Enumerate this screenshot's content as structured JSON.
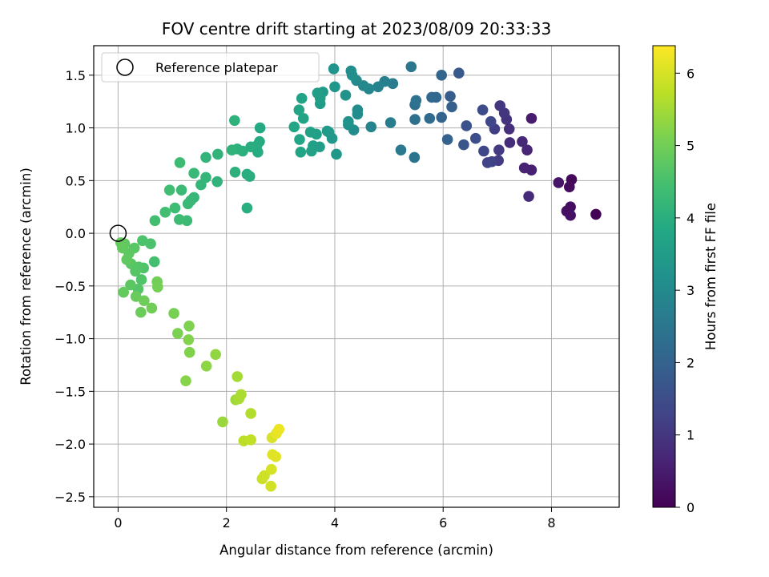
{
  "chart_data": {
    "type": "scatter",
    "title": "FOV centre drift starting at 2023/08/09 20:33:33",
    "xlabel": "Angular distance from reference (arcmin)",
    "ylabel": "Rotation from reference (arcmin)",
    "colorbar_label": "Hours from first FF file",
    "xlim": [
      -0.45,
      9.25
    ],
    "ylim": [
      -2.6,
      1.78
    ],
    "clim": [
      0,
      6.38
    ],
    "colormap": "viridis",
    "grid": true,
    "legend_position": "top-left",
    "x_ticks": [
      "0",
      "2",
      "4",
      "6",
      "8"
    ],
    "x_tick_values": [
      0,
      2,
      4,
      6,
      8
    ],
    "y_ticks": [
      "1.5",
      "1.0",
      "0.5",
      "0.0",
      "−0.5",
      "−1.0",
      "−1.5",
      "−2.0",
      "−2.5"
    ],
    "y_tick_values": [
      1.5,
      1.0,
      0.5,
      0.0,
      -0.5,
      -1.0,
      -1.5,
      -2.0,
      -2.5
    ],
    "colorbar_ticks": [
      "6",
      "5",
      "4",
      "3",
      "2",
      "1",
      "0"
    ],
    "colorbar_tick_values": [
      6,
      5,
      4,
      3,
      2,
      1,
      0
    ],
    "reference": {
      "label": "Reference platepar",
      "x": 0.0,
      "y": 0.0
    },
    "points": [
      {
        "x": 8.82,
        "y": 0.18,
        "t": 0.02
      },
      {
        "x": 8.37,
        "y": 0.51,
        "t": 0.12
      },
      {
        "x": 8.33,
        "y": 0.44,
        "t": 0.18
      },
      {
        "x": 8.35,
        "y": 0.25,
        "t": 0.22
      },
      {
        "x": 8.28,
        "y": 0.21,
        "t": 0.26
      },
      {
        "x": 8.35,
        "y": 0.17,
        "t": 0.3
      },
      {
        "x": 8.13,
        "y": 0.48,
        "t": 0.36
      },
      {
        "x": 7.63,
        "y": 1.09,
        "t": 0.5
      },
      {
        "x": 7.63,
        "y": 0.6,
        "t": 0.56
      },
      {
        "x": 7.5,
        "y": 0.62,
        "t": 0.62
      },
      {
        "x": 7.55,
        "y": 0.79,
        "t": 0.66
      },
      {
        "x": 7.46,
        "y": 0.87,
        "t": 0.72
      },
      {
        "x": 7.58,
        "y": 0.35,
        "t": 0.76
      },
      {
        "x": 7.23,
        "y": 0.86,
        "t": 0.82
      },
      {
        "x": 7.22,
        "y": 0.99,
        "t": 0.86
      },
      {
        "x": 7.17,
        "y": 1.08,
        "t": 0.92
      },
      {
        "x": 7.13,
        "y": 1.14,
        "t": 0.98
      },
      {
        "x": 7.05,
        "y": 1.21,
        "t": 1.02
      },
      {
        "x": 7.03,
        "y": 0.79,
        "t": 1.08
      },
      {
        "x": 7.02,
        "y": 0.69,
        "t": 1.12
      },
      {
        "x": 6.95,
        "y": 0.99,
        "t": 1.18
      },
      {
        "x": 6.9,
        "y": 0.68,
        "t": 1.24
      },
      {
        "x": 6.82,
        "y": 0.67,
        "t": 1.28
      },
      {
        "x": 6.75,
        "y": 0.78,
        "t": 1.34
      },
      {
        "x": 6.88,
        "y": 1.06,
        "t": 1.38
      },
      {
        "x": 6.73,
        "y": 1.17,
        "t": 1.44
      },
      {
        "x": 6.6,
        "y": 0.9,
        "t": 1.52
      },
      {
        "x": 6.43,
        "y": 1.02,
        "t": 1.62
      },
      {
        "x": 6.38,
        "y": 0.84,
        "t": 1.7
      },
      {
        "x": 6.29,
        "y": 1.52,
        "t": 1.78
      },
      {
        "x": 6.13,
        "y": 1.3,
        "t": 1.86
      },
      {
        "x": 6.16,
        "y": 1.2,
        "t": 1.92
      },
      {
        "x": 6.08,
        "y": 0.89,
        "t": 1.98
      },
      {
        "x": 5.97,
        "y": 1.1,
        "t": 2.04
      },
      {
        "x": 5.97,
        "y": 1.5,
        "t": 2.08
      },
      {
        "x": 5.87,
        "y": 1.29,
        "t": 2.12
      },
      {
        "x": 5.79,
        "y": 1.29,
        "t": 2.18
      },
      {
        "x": 5.75,
        "y": 1.09,
        "t": 2.22
      },
      {
        "x": 5.48,
        "y": 1.22,
        "t": 2.3
      },
      {
        "x": 5.48,
        "y": 1.08,
        "t": 2.34
      },
      {
        "x": 5.5,
        "y": 1.26,
        "t": 2.4
      },
      {
        "x": 5.47,
        "y": 0.72,
        "t": 2.46
      },
      {
        "x": 5.41,
        "y": 1.58,
        "t": 2.52
      },
      {
        "x": 5.22,
        "y": 0.79,
        "t": 2.58
      },
      {
        "x": 5.07,
        "y": 1.42,
        "t": 2.64
      },
      {
        "x": 5.03,
        "y": 1.05,
        "t": 2.7
      },
      {
        "x": 4.92,
        "y": 1.44,
        "t": 2.76
      },
      {
        "x": 4.8,
        "y": 1.39,
        "t": 2.82
      },
      {
        "x": 4.67,
        "y": 1.01,
        "t": 2.86
      },
      {
        "x": 4.63,
        "y": 1.37,
        "t": 2.9
      },
      {
        "x": 4.53,
        "y": 1.4,
        "t": 2.96
      },
      {
        "x": 4.4,
        "y": 1.45,
        "t": 3.0
      },
      {
        "x": 4.42,
        "y": 1.17,
        "t": 3.04
      },
      {
        "x": 4.42,
        "y": 1.13,
        "t": 3.06
      },
      {
        "x": 4.35,
        "y": 0.98,
        "t": 3.1
      },
      {
        "x": 4.3,
        "y": 1.54,
        "t": 3.12
      },
      {
        "x": 4.32,
        "y": 1.5,
        "t": 3.16
      },
      {
        "x": 4.25,
        "y": 1.03,
        "t": 3.18
      },
      {
        "x": 4.25,
        "y": 1.06,
        "t": 3.22
      },
      {
        "x": 4.2,
        "y": 1.31,
        "t": 3.24
      },
      {
        "x": 3.98,
        "y": 1.56,
        "t": 3.3
      },
      {
        "x": 4.0,
        "y": 1.39,
        "t": 3.32
      },
      {
        "x": 4.03,
        "y": 0.75,
        "t": 3.36
      },
      {
        "x": 3.95,
        "y": 0.9,
        "t": 3.38
      },
      {
        "x": 3.89,
        "y": 0.96,
        "t": 3.42
      },
      {
        "x": 3.86,
        "y": 0.97,
        "t": 3.44
      },
      {
        "x": 3.78,
        "y": 1.34,
        "t": 3.46
      },
      {
        "x": 3.73,
        "y": 1.23,
        "t": 3.5
      },
      {
        "x": 3.73,
        "y": 1.28,
        "t": 3.52
      },
      {
        "x": 3.72,
        "y": 0.82,
        "t": 3.54
      },
      {
        "x": 3.68,
        "y": 1.33,
        "t": 3.56
      },
      {
        "x": 3.66,
        "y": 0.94,
        "t": 3.58
      },
      {
        "x": 3.6,
        "y": 0.83,
        "t": 3.6
      },
      {
        "x": 3.57,
        "y": 0.78,
        "t": 3.62
      },
      {
        "x": 3.55,
        "y": 0.96,
        "t": 3.64
      },
      {
        "x": 3.42,
        "y": 1.09,
        "t": 3.68
      },
      {
        "x": 3.39,
        "y": 1.28,
        "t": 3.7
      },
      {
        "x": 3.34,
        "y": 1.17,
        "t": 3.72
      },
      {
        "x": 3.37,
        "y": 0.77,
        "t": 3.74
      },
      {
        "x": 3.35,
        "y": 0.89,
        "t": 3.76
      },
      {
        "x": 3.25,
        "y": 1.01,
        "t": 3.78
      },
      {
        "x": 2.62,
        "y": 1.0,
        "t": 3.86
      },
      {
        "x": 2.61,
        "y": 0.87,
        "t": 3.88
      },
      {
        "x": 2.58,
        "y": 0.77,
        "t": 3.9
      },
      {
        "x": 2.56,
        "y": 0.83,
        "t": 3.92
      },
      {
        "x": 2.45,
        "y": 0.82,
        "t": 3.94
      },
      {
        "x": 2.43,
        "y": 0.54,
        "t": 3.96
      },
      {
        "x": 2.38,
        "y": 0.56,
        "t": 3.98
      },
      {
        "x": 2.38,
        "y": 0.24,
        "t": 4.0
      },
      {
        "x": 2.3,
        "y": 0.78,
        "t": 4.02
      },
      {
        "x": 2.2,
        "y": 0.8,
        "t": 4.04
      },
      {
        "x": 2.16,
        "y": 0.58,
        "t": 4.06
      },
      {
        "x": 2.15,
        "y": 1.07,
        "t": 4.08
      },
      {
        "x": 2.1,
        "y": 0.79,
        "t": 4.1
      },
      {
        "x": 1.83,
        "y": 0.49,
        "t": 4.12
      },
      {
        "x": 1.84,
        "y": 0.75,
        "t": 4.14
      },
      {
        "x": 1.62,
        "y": 0.72,
        "t": 4.16
      },
      {
        "x": 1.62,
        "y": 0.53,
        "t": 4.18
      },
      {
        "x": 1.53,
        "y": 0.46,
        "t": 4.2
      },
      {
        "x": 1.4,
        "y": 0.34,
        "t": 4.22
      },
      {
        "x": 1.34,
        "y": 0.31,
        "t": 4.24
      },
      {
        "x": 1.4,
        "y": 0.57,
        "t": 4.26
      },
      {
        "x": 1.29,
        "y": 0.28,
        "t": 4.28
      },
      {
        "x": 1.27,
        "y": 0.12,
        "t": 4.3
      },
      {
        "x": 1.17,
        "y": 0.41,
        "t": 4.32
      },
      {
        "x": 1.14,
        "y": 0.67,
        "t": 4.34
      },
      {
        "x": 1.13,
        "y": 0.13,
        "t": 4.36
      },
      {
        "x": 1.05,
        "y": 0.24,
        "t": 4.38
      },
      {
        "x": 0.95,
        "y": 0.41,
        "t": 4.4
      },
      {
        "x": 0.87,
        "y": 0.2,
        "t": 4.42
      },
      {
        "x": 0.68,
        "y": 0.12,
        "t": 4.44
      },
      {
        "x": 0.67,
        "y": -0.27,
        "t": 4.48
      },
      {
        "x": 0.6,
        "y": -0.1,
        "t": 4.52
      },
      {
        "x": 0.45,
        "y": -0.07,
        "t": 4.56
      },
      {
        "x": 0.47,
        "y": -0.33,
        "t": 4.6
      },
      {
        "x": 0.43,
        "y": -0.44,
        "t": 4.62
      },
      {
        "x": 0.38,
        "y": -0.32,
        "t": 4.64
      },
      {
        "x": 0.37,
        "y": -0.53,
        "t": 4.66
      },
      {
        "x": 0.32,
        "y": -0.36,
        "t": 4.68
      },
      {
        "x": 0.3,
        "y": -0.14,
        "t": 4.7
      },
      {
        "x": 0.24,
        "y": -0.29,
        "t": 4.72
      },
      {
        "x": 0.23,
        "y": -0.49,
        "t": 4.74
      },
      {
        "x": 0.2,
        "y": -0.19,
        "t": 4.76
      },
      {
        "x": 0.16,
        "y": -0.25,
        "t": 4.78
      },
      {
        "x": 0.12,
        "y": -0.1,
        "t": 4.8
      },
      {
        "x": 0.08,
        "y": -0.14,
        "t": 4.82
      },
      {
        "x": 0.05,
        "y": -0.09,
        "t": 4.84
      },
      {
        "x": 0.1,
        "y": -0.56,
        "t": 4.86
      },
      {
        "x": 0.33,
        "y": -0.6,
        "t": 4.9
      },
      {
        "x": 0.42,
        "y": -0.75,
        "t": 4.94
      },
      {
        "x": 0.48,
        "y": -0.64,
        "t": 4.96
      },
      {
        "x": 0.62,
        "y": -0.71,
        "t": 4.98
      },
      {
        "x": 0.72,
        "y": -0.46,
        "t": 5.0
      },
      {
        "x": 0.73,
        "y": -0.51,
        "t": 5.02
      },
      {
        "x": 1.03,
        "y": -0.76,
        "t": 5.06
      },
      {
        "x": 1.1,
        "y": -0.95,
        "t": 5.1
      },
      {
        "x": 1.31,
        "y": -0.88,
        "t": 5.14
      },
      {
        "x": 1.32,
        "y": -1.13,
        "t": 5.16
      },
      {
        "x": 1.3,
        "y": -1.01,
        "t": 5.18
      },
      {
        "x": 1.25,
        "y": -1.4,
        "t": 5.22
      },
      {
        "x": 1.63,
        "y": -1.26,
        "t": 5.28
      },
      {
        "x": 1.8,
        "y": -1.15,
        "t": 5.32
      },
      {
        "x": 1.93,
        "y": -1.79,
        "t": 5.4
      },
      {
        "x": 2.17,
        "y": -1.58,
        "t": 5.46
      },
      {
        "x": 2.2,
        "y": -1.36,
        "t": 5.5
      },
      {
        "x": 2.23,
        "y": -1.57,
        "t": 5.54
      },
      {
        "x": 2.27,
        "y": -1.53,
        "t": 5.58
      },
      {
        "x": 2.45,
        "y": -1.71,
        "t": 5.64
      },
      {
        "x": 2.32,
        "y": -1.97,
        "t": 5.72
      },
      {
        "x": 2.45,
        "y": -1.96,
        "t": 5.78
      },
      {
        "x": 2.66,
        "y": -2.33,
        "t": 5.86
      },
      {
        "x": 2.7,
        "y": -2.3,
        "t": 5.9
      },
      {
        "x": 2.82,
        "y": -2.4,
        "t": 5.94
      },
      {
        "x": 2.83,
        "y": -2.24,
        "t": 5.98
      },
      {
        "x": 2.84,
        "y": -1.94,
        "t": 6.02
      },
      {
        "x": 2.85,
        "y": -2.1,
        "t": 6.06
      },
      {
        "x": 2.91,
        "y": -2.12,
        "t": 6.1
      },
      {
        "x": 2.92,
        "y": -1.9,
        "t": 6.14
      },
      {
        "x": 2.97,
        "y": -1.86,
        "t": 6.2
      }
    ]
  }
}
